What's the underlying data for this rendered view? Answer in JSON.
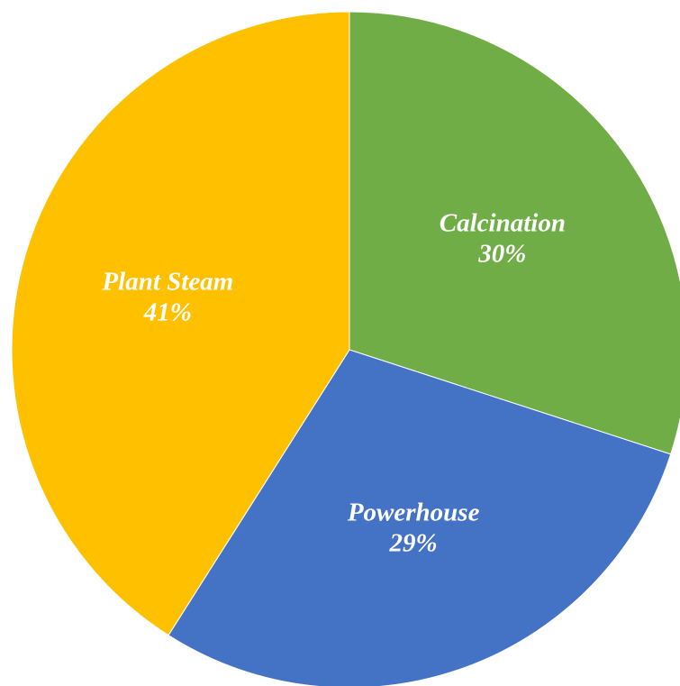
{
  "chart_data": {
    "type": "pie",
    "title": "",
    "start": "12 o'clock",
    "direction": "clockwise",
    "legend": "none",
    "slices": [
      {
        "label": "Calcination",
        "value": 30,
        "value_label": "30%",
        "color": "#70AD47"
      },
      {
        "label": "Powerhouse",
        "value": 29,
        "value_label": "29%",
        "color": "#4472C4"
      },
      {
        "label": "Plant Steam",
        "value": 41,
        "value_label": "41%",
        "color": "#FFC000"
      }
    ]
  }
}
